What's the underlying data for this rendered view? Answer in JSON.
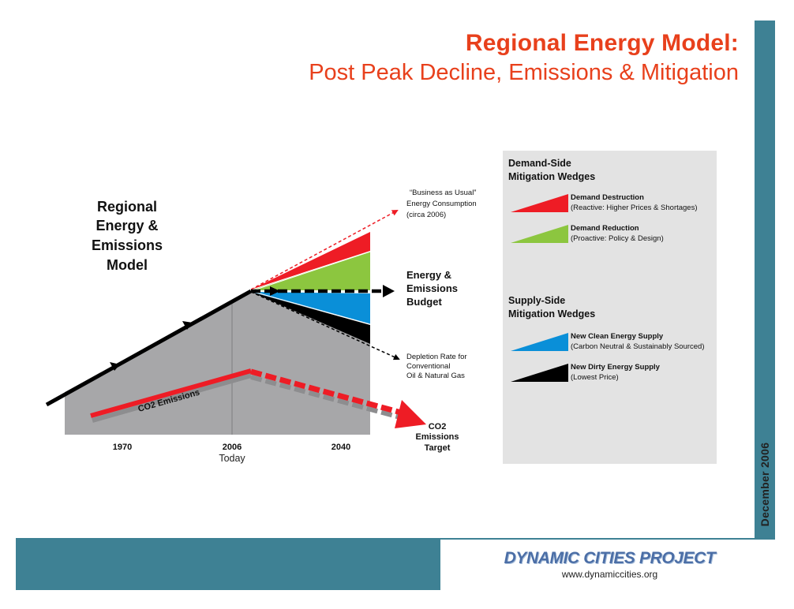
{
  "header": {
    "title_line1": "Regional Energy Model:",
    "title_line2": "Post Peak Decline, Emissions & Mitigation"
  },
  "side": {
    "date": "December 2006"
  },
  "footer": {
    "org_name": "DYNAMIC CITIES PROJECT",
    "url": "www.dynamiccities.org"
  },
  "diagram": {
    "heading": [
      "Regional",
      "Energy &",
      "Emissions",
      "Model"
    ],
    "bau_label": [
      "“Business as Usual”",
      "Energy Consumption",
      "(circa 2006)"
    ],
    "budget_label": [
      "Energy &",
      "Emissions",
      "Budget"
    ],
    "depletion_label": [
      "Depletion Rate for",
      "Conventional",
      "Oil & Natural Gas"
    ],
    "co2_label": "CO2 Emissions",
    "target_label": [
      "CO2",
      "Emissions",
      "Target"
    ],
    "x_labels": [
      "1970",
      "2006",
      "2040"
    ],
    "today_label": "Today",
    "colors": {
      "red": "#ee1c25",
      "green": "#8cc63f",
      "blue": "#0a8fd8",
      "black": "#000000",
      "area": "#a7a7a9",
      "accent": "#e8401c",
      "teal": "#3e8194"
    }
  },
  "legend": {
    "demand_heading": [
      "Demand-Side",
      "Mitigation Wedges"
    ],
    "supply_heading": [
      "Supply-Side",
      "Mitigation Wedges"
    ],
    "demand_items": [
      {
        "title": "Demand Destruction",
        "sub": "(Reactive:  Higher Prices & Shortages)",
        "color": "#ee1c25"
      },
      {
        "title": "Demand Reduction",
        "sub": "(Proactive: Policy & Design)",
        "color": "#8cc63f"
      }
    ],
    "supply_items": [
      {
        "title": "New Clean Energy Supply",
        "sub": "(Carbon Neutral & Sustainably Sourced)",
        "color": "#0a8fd8"
      },
      {
        "title": "New Dirty Energy Supply",
        "sub": "(Lowest Price)",
        "color": "#000000"
      }
    ]
  }
}
